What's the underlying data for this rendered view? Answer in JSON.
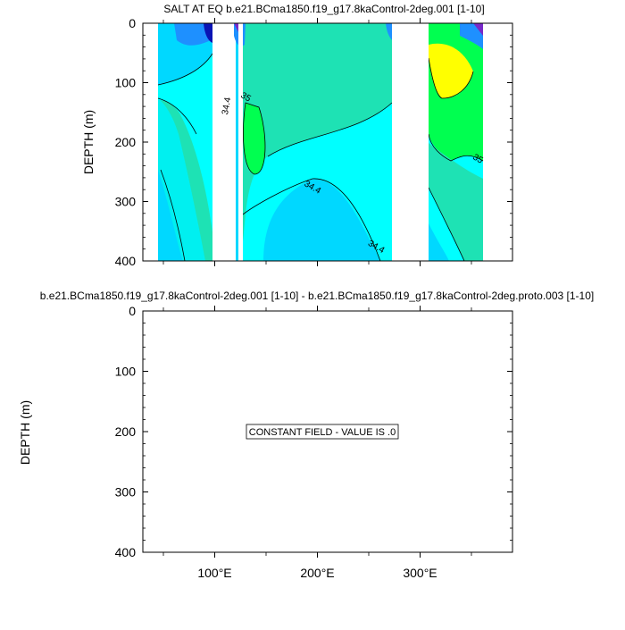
{
  "chart_data": [
    {
      "type": "contour",
      "title": "SALT AT EQ b.e21.BCma1850.f19_g17.8kaControl-2deg.001 [1-10]",
      "ylabel": "DEPTH (m)",
      "xlabel": "",
      "xlim": [
        30,
        390
      ],
      "ylim": [
        400,
        0
      ],
      "yticks": [
        0,
        100,
        200,
        300,
        400
      ],
      "xticks_major": [
        100,
        200,
        300
      ],
      "contour_labels": [
        {
          "text": "34.4",
          "lon": 114,
          "depth": 140
        },
        {
          "text": "35",
          "lon": 129,
          "depth": 128
        },
        {
          "text": "34.4",
          "lon": 194,
          "depth": 280
        },
        {
          "text": "34.4",
          "lon": 256,
          "depth": 380
        },
        {
          "text": "35",
          "lon": 355,
          "depth": 232
        }
      ],
      "land_gaps_lon": [
        [
          99,
          114
        ],
        [
          117,
          119
        ],
        [
          279,
          314
        ]
      ],
      "ocean_lon_range": [
        45,
        370
      ]
    },
    {
      "type": "contour",
      "title": "b.e21.BCma1850.f19_g17.8kaControl-2deg.001 [1-10] - b.e21.BCma1850.f19_g17.8kaControl-2deg.proto.003 [1-10]",
      "ylabel": "DEPTH (m)",
      "xlim": [
        30,
        390
      ],
      "ylim": [
        400,
        0
      ],
      "yticks": [
        0,
        100,
        200,
        300,
        400
      ],
      "xticks_major": [
        100,
        200,
        300
      ],
      "xtick_labels": [
        "100°E",
        "200°E",
        "300°E"
      ],
      "annotation": "CONSTANT FIELD - VALUE IS .0"
    }
  ],
  "colors": {
    "deep_blue": "#1e90ff",
    "cyan": "#00ffff",
    "sky": "#00d8ff",
    "teal": "#1ee2b4",
    "green": "#00ff50",
    "yellow": "#ffff00",
    "navy": "#0a14b4",
    "purple": "#7828c8"
  }
}
